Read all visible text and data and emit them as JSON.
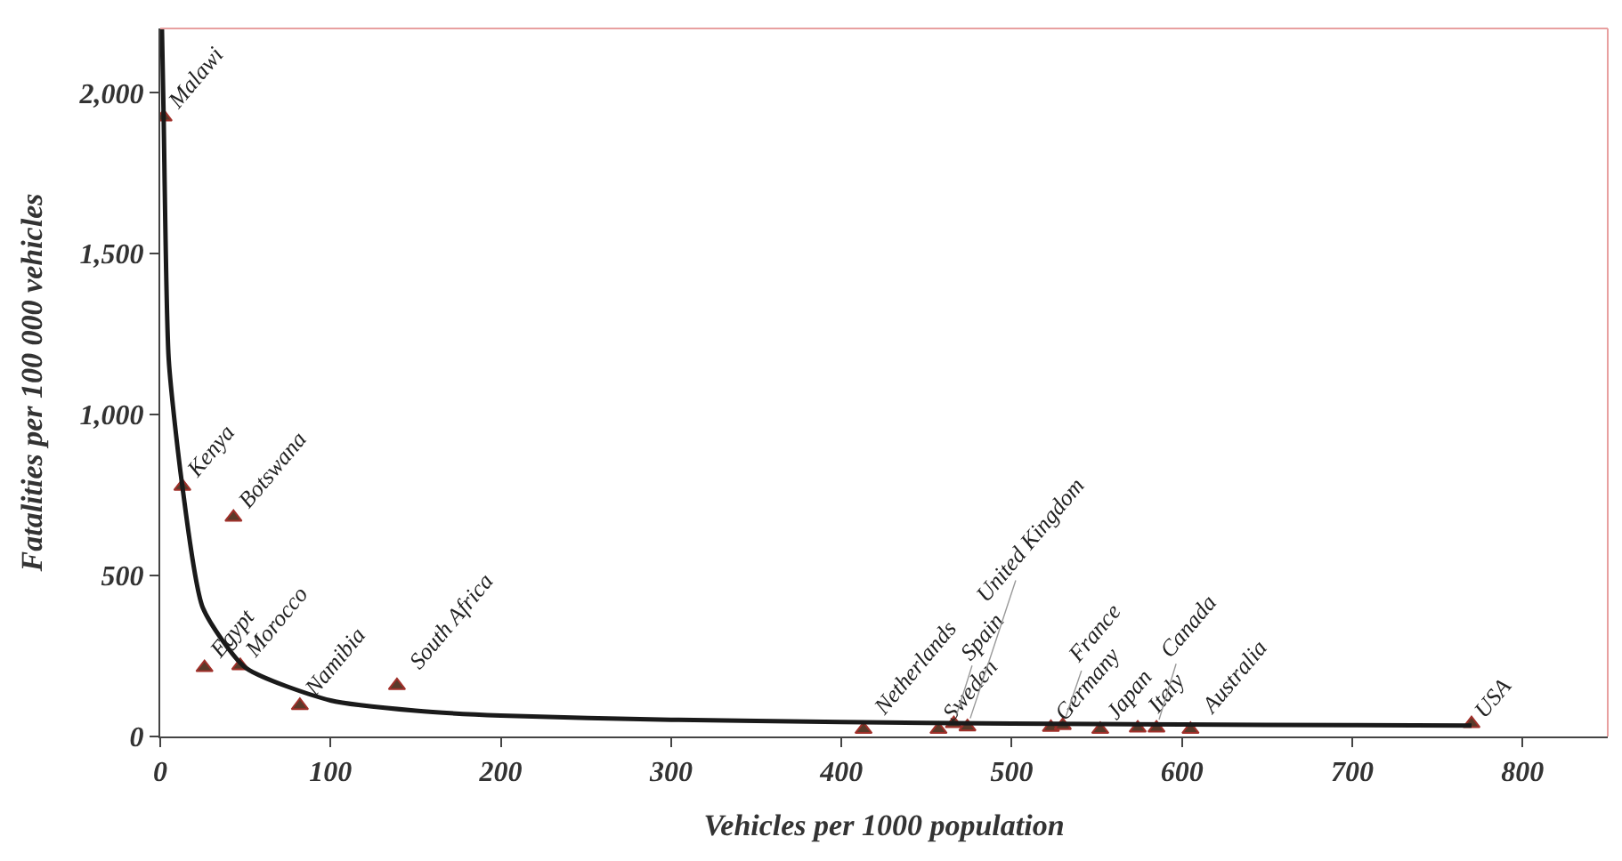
{
  "chart_data": {
    "type": "scatter",
    "xlabel": "Vehicles per 1000 population",
    "ylabel": "Fatalities per 100 000 vehicles",
    "xlim": [
      0,
      850
    ],
    "xticks": [
      0,
      100,
      200,
      300,
      400,
      500,
      600,
      700,
      800
    ],
    "ylim": [
      0,
      2200
    ],
    "yticks": [
      {
        "value": 0,
        "label": "0"
      },
      {
        "value": 500,
        "label": "500"
      },
      {
        "value": 1000,
        "label": "1,000"
      },
      {
        "value": 1500,
        "label": "1,500"
      },
      {
        "value": 2000,
        "label": "2,000"
      }
    ],
    "grid": false,
    "legend": false,
    "series": [
      {
        "marker": "triangle",
        "color": "#5a3a2a",
        "x": [
          2,
          13,
          43,
          26,
          47,
          82,
          139,
          413,
          457,
          466,
          474,
          523,
          530,
          552,
          574,
          585,
          605,
          770
        ],
        "values": [
          1925,
          777,
          681,
          214,
          220,
          96,
          158,
          22,
          22,
          40,
          30,
          28,
          34,
          22,
          26,
          26,
          22,
          40
        ]
      },
      {
        "type": "line",
        "marker": "none",
        "color": "#1a1a1a",
        "x": [
          1,
          2,
          5,
          13,
          25,
          50,
          100,
          150,
          200,
          300,
          400,
          500,
          600,
          700,
          770
        ],
        "values": [
          2200,
          1925,
          1170,
          777,
          400,
          214,
          112,
          80,
          65,
          52,
          45,
          40,
          37,
          35,
          34
        ]
      }
    ],
    "annotations": [
      {
        "text": "Malawi",
        "x": 2,
        "y": 1925
      },
      {
        "text": "Kenya",
        "x": 13,
        "y": 777
      },
      {
        "text": "Botswana",
        "x": 43,
        "y": 681
      },
      {
        "text": "Egypt",
        "x": 26,
        "y": 214
      },
      {
        "text": "Morocco",
        "x": 47,
        "y": 220
      },
      {
        "text": "Namibia",
        "x": 82,
        "y": 96
      },
      {
        "text": "South Africa",
        "x": 139,
        "y": 158
      },
      {
        "text": "Netherlands",
        "x": 413,
        "y": 22
      },
      {
        "text": "Sweden",
        "x": 457,
        "y": 22
      },
      {
        "text": "Spain",
        "x": 466,
        "y": 40
      },
      {
        "text": "United Kingdom",
        "x": 474,
        "y": 30
      },
      {
        "text": "Germany",
        "x": 523,
        "y": 28
      },
      {
        "text": "France",
        "x": 530,
        "y": 34
      },
      {
        "text": "Japan",
        "x": 552,
        "y": 22
      },
      {
        "text": "Italy",
        "x": 574,
        "y": 26
      },
      {
        "text": "Canada",
        "x": 585,
        "y": 26
      },
      {
        "text": "Australia",
        "x": 605,
        "y": 22
      },
      {
        "text": "USA",
        "x": 770,
        "y": 40
      }
    ]
  }
}
